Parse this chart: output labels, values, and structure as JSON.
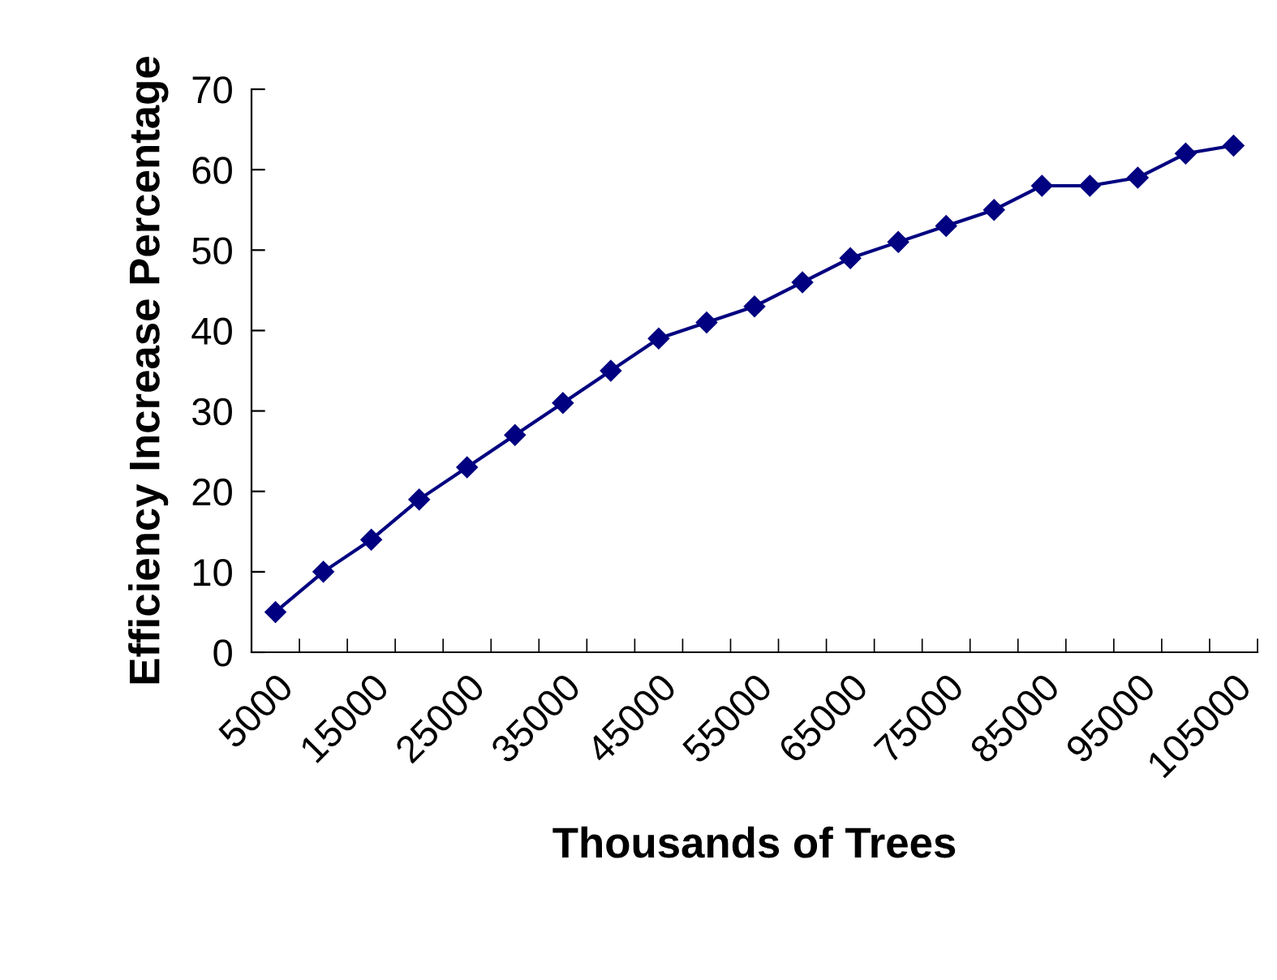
{
  "chart_data": {
    "type": "line",
    "xlabel": "Thousands of Trees",
    "ylabel": "Efficiency Increase Percentage",
    "categories": [
      "5000",
      null,
      "15000",
      null,
      "25000",
      null,
      "35000",
      null,
      "45000",
      null,
      "55000",
      null,
      "65000",
      null,
      "75000",
      null,
      "85000",
      null,
      "95000",
      null,
      "105000"
    ],
    "series": [
      {
        "color": "#000080",
        "values": [
          5,
          10,
          14,
          19,
          23,
          27,
          31,
          35,
          39,
          41,
          43,
          46,
          49,
          51,
          53,
          55,
          58,
          58,
          59,
          62,
          63
        ]
      }
    ],
    "ylim": [
      0,
      70
    ],
    "yticks": [
      0,
      10,
      20,
      30,
      40,
      50,
      60,
      70
    ],
    "grid": false,
    "legend": false,
    "marker": "diamond",
    "line_style": "solid"
  }
}
